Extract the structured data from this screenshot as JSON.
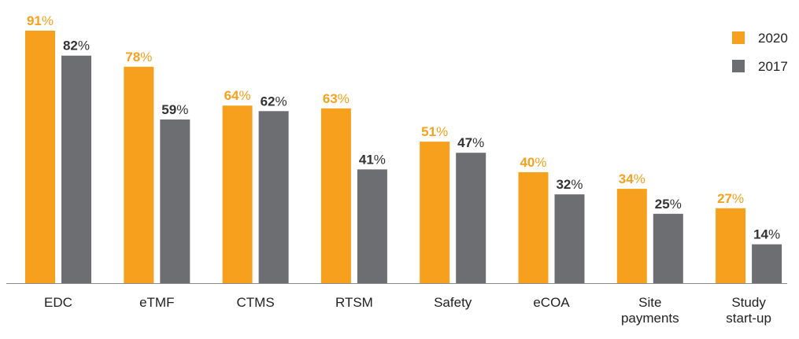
{
  "chart_data": {
    "type": "bar",
    "title": "",
    "xlabel": "",
    "ylabel": "",
    "ylim": [
      0,
      91
    ],
    "value_suffix": "%",
    "legend_position": "top-right",
    "categories": [
      "EDC",
      "eTMF",
      "CTMS",
      "RTSM",
      "Safety",
      "eCOA",
      "Site payments",
      "Study start-up"
    ],
    "category_lines": [
      [
        "EDC"
      ],
      [
        "eTMF"
      ],
      [
        "CTMS"
      ],
      [
        "RTSM"
      ],
      [
        "Safety"
      ],
      [
        "eCOA"
      ],
      [
        "Site",
        "payments"
      ],
      [
        "Study",
        "start-up"
      ]
    ],
    "series": [
      {
        "name": "2020",
        "color": "#F7A01D",
        "label_color": "#F7A01D",
        "values": [
          91,
          78,
          64,
          63,
          51,
          40,
          34,
          27
        ]
      },
      {
        "name": "2017",
        "color": "#6D6E71",
        "label_color": "#333333",
        "values": [
          82,
          59,
          62,
          41,
          47,
          32,
          25,
          14
        ]
      }
    ],
    "axis_color": "#888888"
  }
}
